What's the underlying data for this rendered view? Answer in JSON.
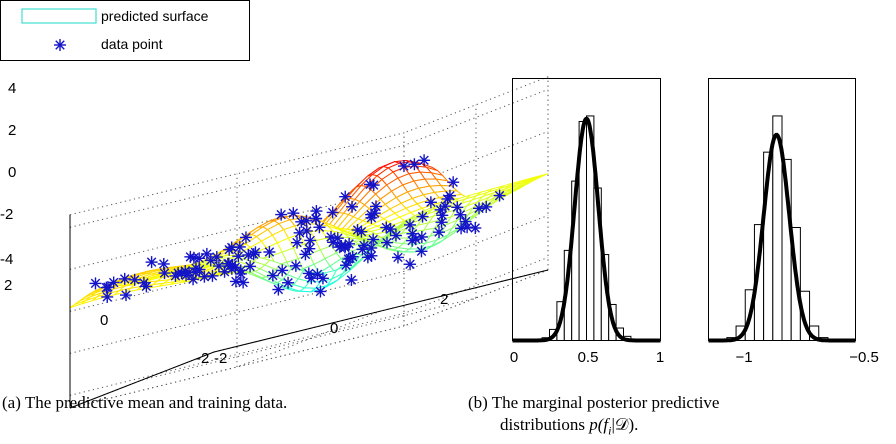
{
  "chart_data": [
    {
      "type": "surface3d",
      "title": "",
      "xticks": [
        "-2",
        "0",
        "2"
      ],
      "yticks": [
        "-2",
        "0",
        "2"
      ],
      "zticks": [
        "-4",
        "-2",
        "0",
        "2",
        "4"
      ],
      "xlim": [
        -2,
        2
      ],
      "ylim": [
        -2,
        2
      ],
      "zlim": [
        -4,
        4
      ],
      "grid": true,
      "legend_position": "top-left",
      "legend": [
        {
          "label": "predicted surface",
          "color": "#40e0d0"
        },
        {
          "label": "data point",
          "color": "#1414c8"
        }
      ],
      "colormap": [
        "#00ffff",
        "#80ff80",
        "#ffff00",
        "#ff8000",
        "#ff0000"
      ]
    },
    {
      "type": "histogram",
      "xticks": [
        "0",
        "0.5",
        "1"
      ],
      "xlim": [
        0,
        1
      ],
      "bins": [
        0.2,
        0.25,
        0.3,
        0.35,
        0.4,
        0.45,
        0.5,
        0.55,
        0.6,
        0.65,
        0.7,
        0.75,
        0.8
      ],
      "counts": [
        0.2,
        0.8,
        2.8,
        6.5,
        11.5,
        15.8,
        16.2,
        11.0,
        6.2,
        2.6,
        0.9,
        0.3
      ],
      "density": {
        "mean": 0.5,
        "sd": 0.08,
        "peak": 16.0
      }
    },
    {
      "type": "histogram",
      "xticks": [
        "−1",
        "−0.5"
      ],
      "xlim": [
        -1.25,
        -0.45
      ],
      "bins": [
        -1.15,
        -1.1,
        -1.05,
        -1.0,
        -0.95,
        -0.9,
        -0.85,
        -0.8,
        -0.75,
        -0.7,
        -0.65,
        -0.6
      ],
      "counts": [
        0.2,
        1.0,
        3.5,
        8.0,
        13.0,
        15.5,
        12.5,
        7.8,
        3.4,
        1.0,
        0.2
      ],
      "density": {
        "mean": -0.88,
        "sd": 0.07,
        "peak": 14.2
      }
    }
  ],
  "captions": {
    "a": {
      "label": "(a)",
      "text": "The predictive mean and training data."
    },
    "b": {
      "label": "(b)",
      "text": "The marginal posterior predictive",
      "line2_prefix": "distributions ",
      "math": "p(f",
      "math_sub": "i",
      "math_rest": "|𝒟)",
      "line2_suffix": "."
    }
  },
  "colors": {
    "wire_low": "#00ffff",
    "wire_high": "#ff0000",
    "marker": "#1414c8",
    "curve": "#000000"
  }
}
